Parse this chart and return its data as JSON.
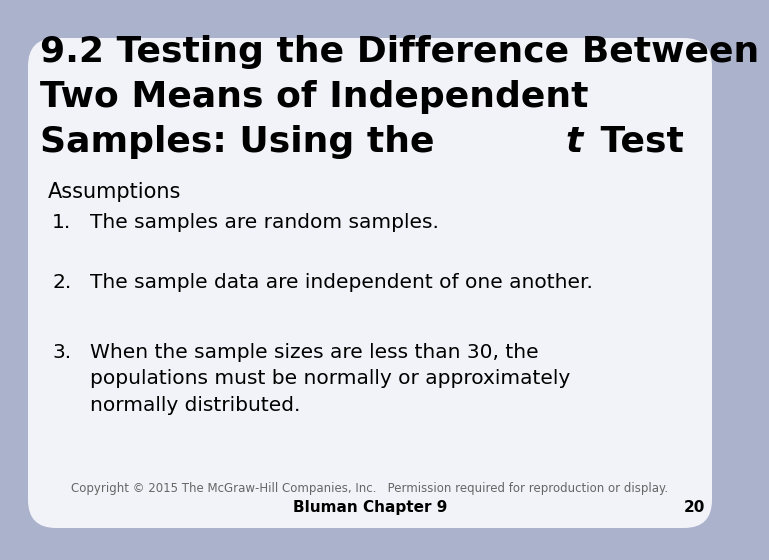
{
  "bg_color": "#aab2cc",
  "card_color": "#f2f3f8",
  "title_line1": "9.2 Testing the Difference Between",
  "title_line2": "Two Means of Independent",
  "title_line3_normal": "Samples: Using the ",
  "title_line3_italic": "t",
  "title_line3_end": " Test",
  "section_label": "Assumptions",
  "items": [
    "The samples are random samples.",
    "The sample data are independent of one another.",
    "When the sample sizes are less than 30, the\npopulations must be normally or approximately\nnormally distributed."
  ],
  "copyright": "Copyright © 2015 The McGraw-Hill Companies, Inc.   Permission required for reproduction or display.",
  "footer": "Bluman Chapter 9",
  "page": "20",
  "title_fontsize": 26,
  "body_fontsize": 14.5,
  "section_fontsize": 15,
  "footer_fontsize": 11,
  "copyright_fontsize": 8.5
}
